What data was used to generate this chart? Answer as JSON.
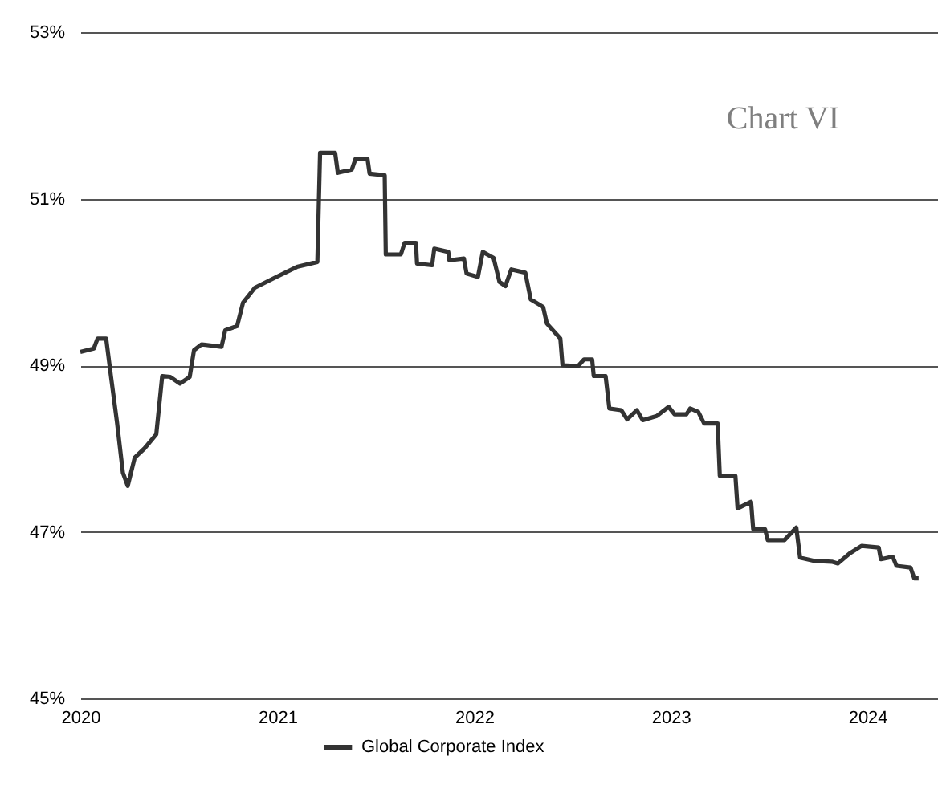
{
  "chart_data": {
    "type": "line",
    "annotations": [
      "Chart VI"
    ],
    "x": [
      "2020-01-01",
      "2020-01-26",
      "2020-02-02",
      "2020-02-18",
      "2020-02-27",
      "2020-03-09",
      "2020-03-20",
      "2020-03-29",
      "2020-04-11",
      "2020-04-29",
      "2020-05-21",
      "2020-06-01",
      "2020-06-16",
      "2020-07-04",
      "2020-07-22",
      "2020-07-30",
      "2020-08-13",
      "2020-09-19",
      "2020-09-26",
      "2020-10-18",
      "2020-10-29",
      "2020-11-20",
      "2020-12-30",
      "2021-02-06",
      "2021-03-16",
      "2021-03-21",
      "2021-04-18",
      "2021-04-23",
      "2021-05-19",
      "2021-05-26",
      "2021-06-17",
      "2021-06-21",
      "2021-07-19",
      "2021-07-21",
      "2021-08-18",
      "2021-08-25",
      "2021-09-15",
      "2021-09-17",
      "2021-10-15",
      "2021-10-19",
      "2021-11-14",
      "2021-11-16",
      "2021-12-13",
      "2021-12-18",
      "2022-01-08",
      "2022-01-17",
      "2022-02-06",
      "2022-02-17",
      "2022-02-28",
      "2022-03-11",
      "2022-04-06",
      "2022-04-16",
      "2022-05-09",
      "2022-05-16",
      "2022-06-10",
      "2022-06-14",
      "2022-07-13",
      "2022-07-24",
      "2022-08-08",
      "2022-08-11",
      "2022-09-02",
      "2022-09-09",
      "2022-10-01",
      "2022-10-12",
      "2022-10-30",
      "2022-11-10",
      "2022-12-06",
      "2022-12-28",
      "2023-01-08",
      "2023-01-30",
      "2023-02-06",
      "2023-02-21",
      "2023-03-04",
      "2023-03-29",
      "2023-04-02",
      "2023-05-01",
      "2023-05-05",
      "2023-05-30",
      "2023-06-03",
      "2023-06-25",
      "2023-06-30",
      "2023-07-31",
      "2023-08-22",
      "2023-08-29",
      "2023-09-24",
      "2023-10-27",
      "2023-11-07",
      "2023-11-29",
      "2023-12-21",
      "2024-01-22",
      "2024-01-26",
      "2024-02-17",
      "2024-02-24",
      "2024-03-21",
      "2024-03-28",
      "2024-04-05"
    ],
    "series": [
      {
        "name": "Global Corporate Index",
        "color": "#333333",
        "values": [
          49.16,
          49.2,
          49.32,
          49.32,
          48.86,
          48.32,
          47.71,
          47.55,
          47.89,
          48.0,
          48.17,
          48.87,
          48.86,
          48.78,
          48.86,
          49.18,
          49.25,
          49.22,
          49.42,
          49.47,
          49.75,
          49.93,
          50.06,
          50.18,
          50.24,
          51.55,
          51.55,
          51.31,
          51.35,
          51.48,
          51.48,
          51.3,
          51.28,
          50.33,
          50.33,
          50.47,
          50.47,
          50.22,
          50.2,
          50.4,
          50.36,
          50.26,
          50.28,
          50.1,
          50.06,
          50.36,
          50.29,
          50.0,
          49.95,
          50.15,
          50.11,
          49.79,
          49.7,
          49.5,
          49.32,
          49.0,
          48.99,
          49.07,
          49.07,
          48.87,
          48.87,
          48.48,
          48.46,
          48.35,
          48.46,
          48.34,
          48.39,
          48.5,
          48.41,
          48.41,
          48.48,
          48.44,
          48.3,
          48.3,
          47.67,
          47.67,
          47.28,
          47.36,
          47.03,
          47.03,
          46.9,
          46.9,
          47.05,
          46.69,
          46.65,
          46.64,
          46.62,
          46.74,
          46.83,
          46.81,
          46.67,
          46.7,
          46.59,
          46.57,
          46.44,
          46.44
        ]
      }
    ],
    "xlim": [
      "2020-01-01",
      "2024-05-11"
    ],
    "xticks": [
      "2020",
      "2021",
      "2022",
      "2023",
      "2024"
    ],
    "ylim": [
      45,
      53
    ],
    "yticks": [
      {
        "value": 45,
        "label": "45%"
      },
      {
        "value": 47,
        "label": "47%"
      },
      {
        "value": 49,
        "label": "49%"
      },
      {
        "value": 51,
        "label": "51%"
      },
      {
        "value": 53,
        "label": "53%"
      }
    ],
    "grid": "y",
    "legend": "bottom",
    "marker": "none",
    "line_style": "solid"
  }
}
